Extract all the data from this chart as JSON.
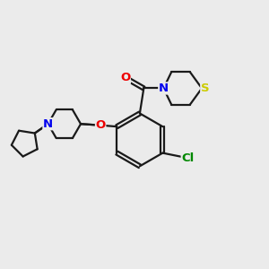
{
  "background_color": "#ebebeb",
  "bond_color": "#1a1a1a",
  "atom_colors": {
    "N": "#0000ee",
    "O": "#ee0000",
    "S": "#cccc00",
    "Cl": "#008800"
  },
  "figsize": [
    3.0,
    3.0
  ],
  "dpi": 100
}
